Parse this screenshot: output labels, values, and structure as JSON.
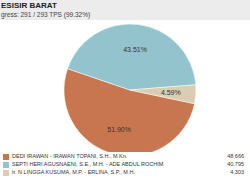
{
  "header": {
    "title": "ESISIR BARAT",
    "subtitle": "gress: 291 / 293 TPS (99.32%)"
  },
  "chart_data": {
    "type": "pie",
    "categories": [
      "DEDI IRAWAN - IRAWAN TOPANI, S.H., M.Kn.",
      "SEPTI HERI AGUSNAENI, S.E., M.H. - ADE ABDUL ROCHIM",
      "Ir. N LINGGA KUSUMA, M.P. - ERLINA, S.P., M.H."
    ],
    "values": [
      51.9,
      43.51,
      4.59
    ],
    "value_labels": [
      "51.90%",
      "43.51%",
      "4.59%"
    ],
    "colors": [
      "#c8764f",
      "#93c4cd",
      "#d9cdb2"
    ],
    "data_labels": true,
    "legend": "bottom",
    "legend_values": [
      "48,666",
      "40,795",
      "4,303"
    ]
  }
}
